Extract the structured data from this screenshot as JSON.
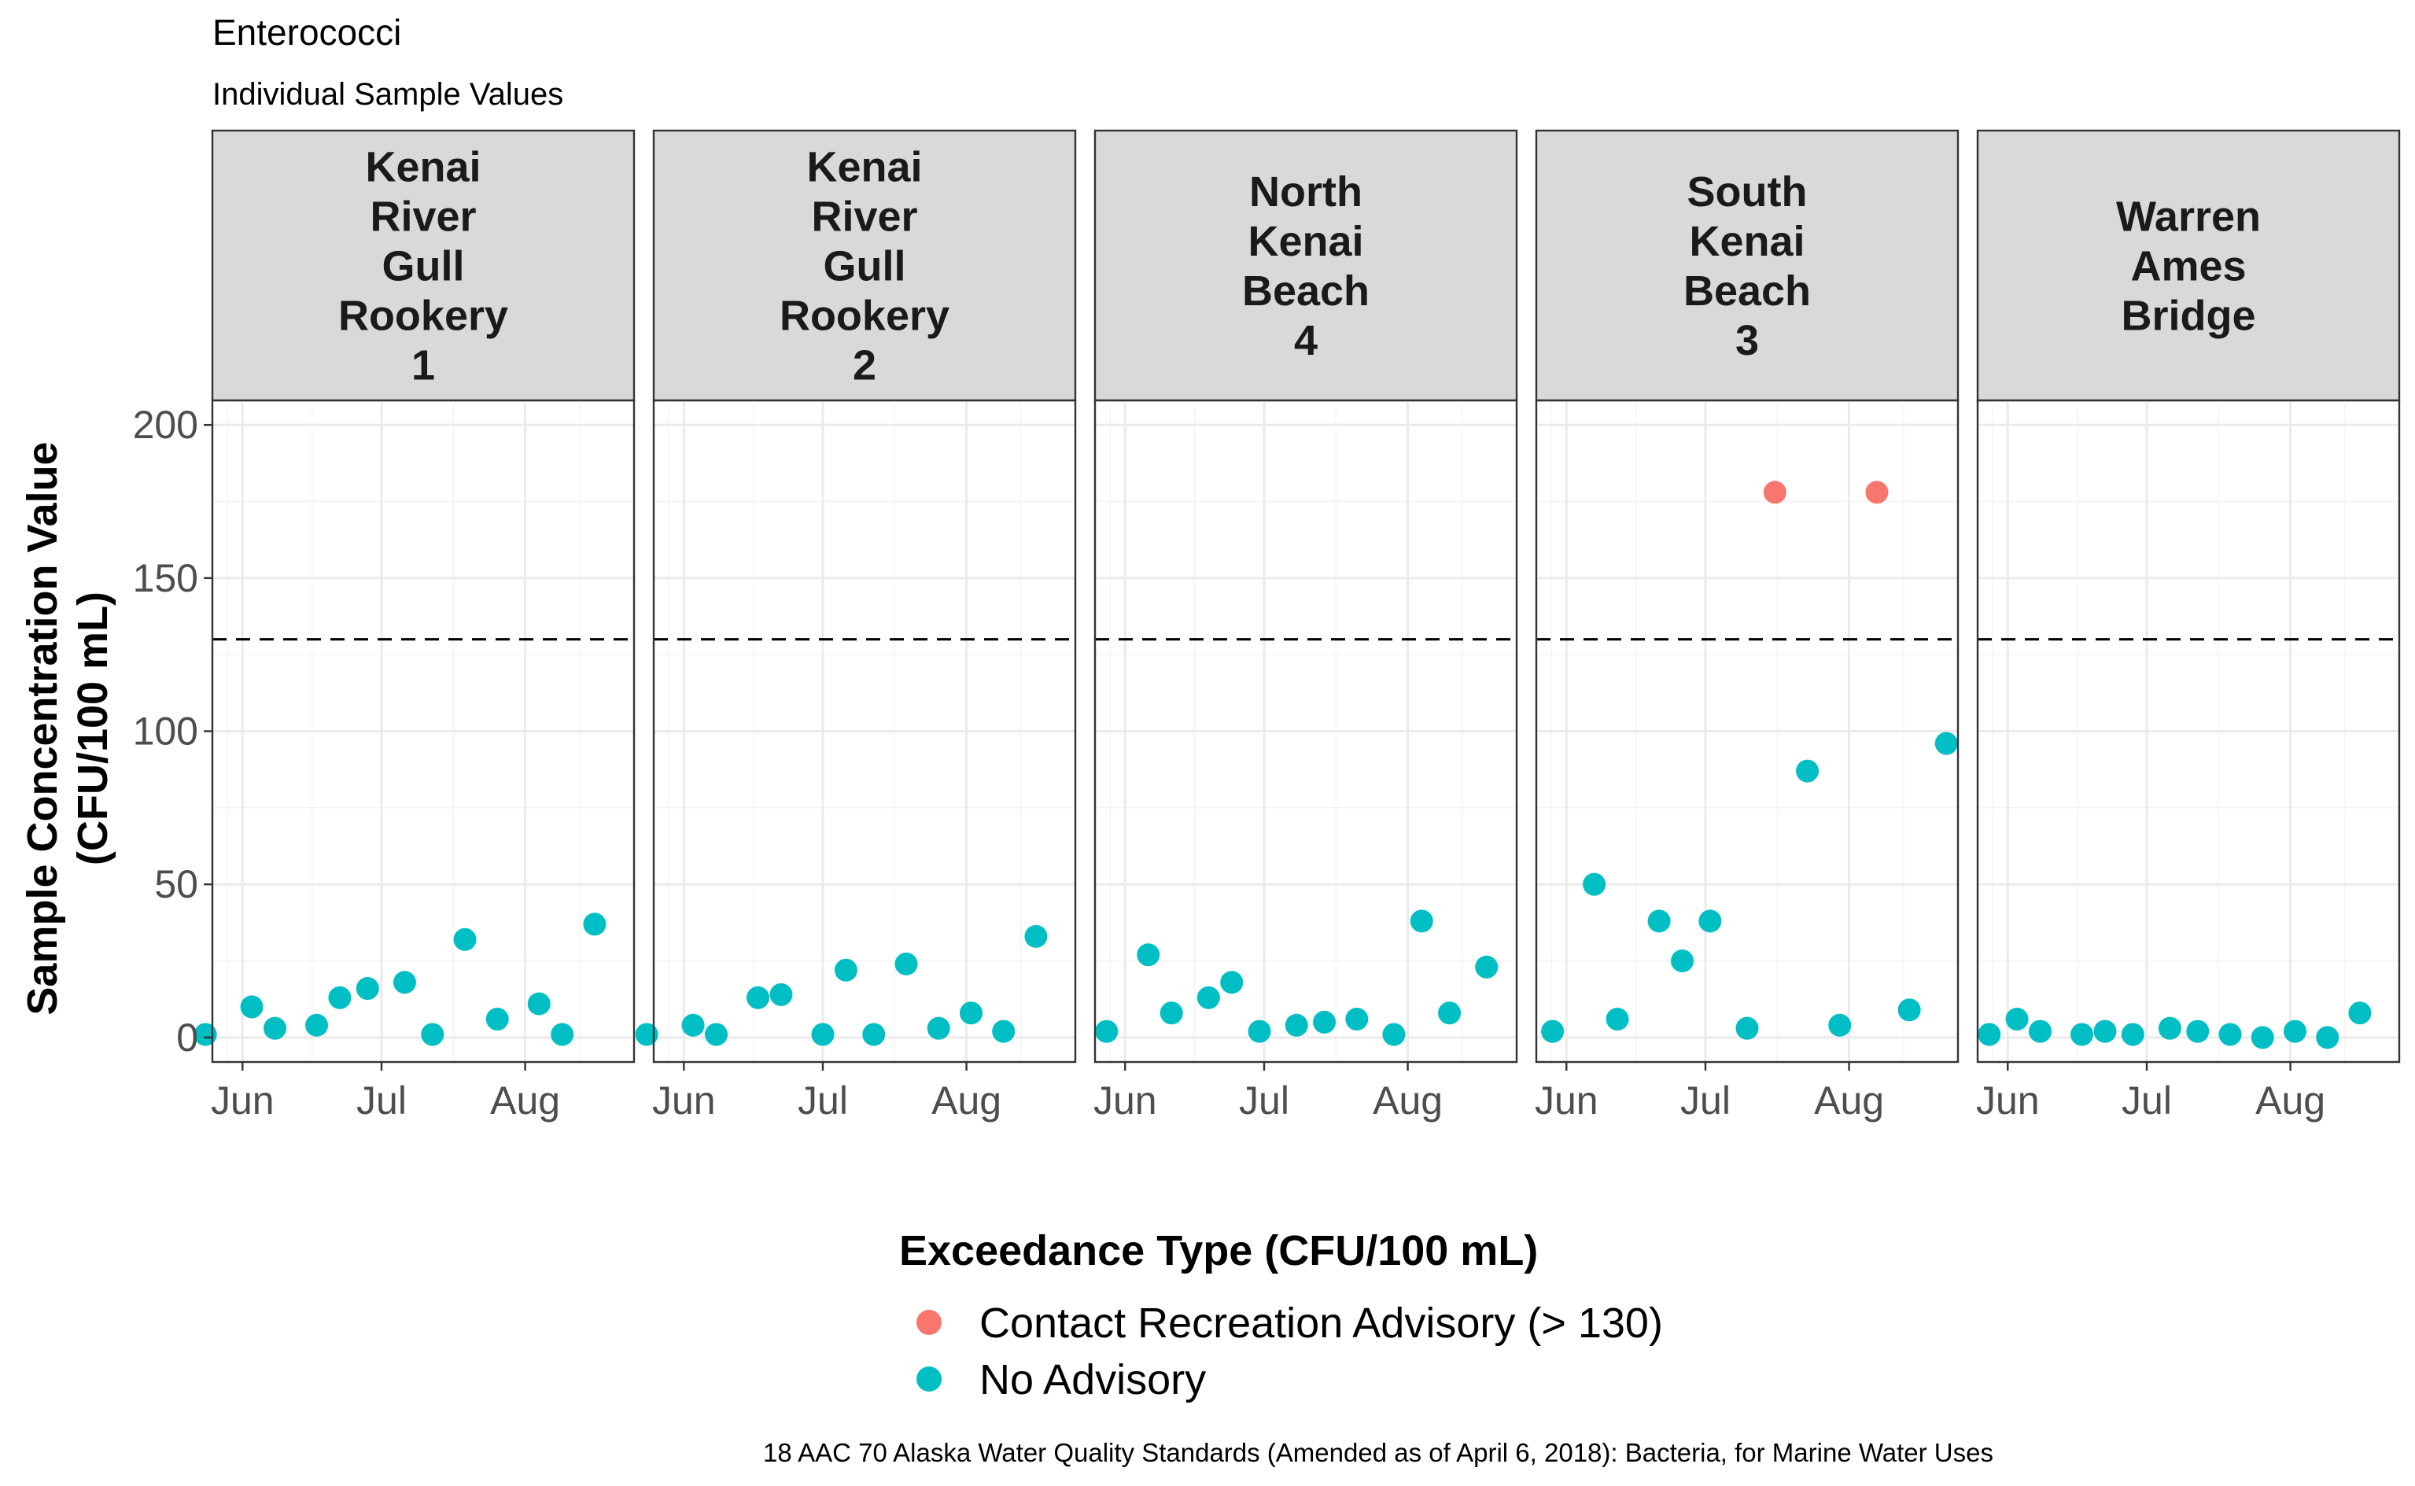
{
  "chart_data": {
    "type": "scatter",
    "title": "Enterococci",
    "subtitle": "Individual Sample Values",
    "ylabel_lines": [
      "Sample Concentration Value",
      "(CFU/100 mL)"
    ],
    "ylim": [
      -8,
      208
    ],
    "yticks": [
      0,
      50,
      100,
      150,
      200
    ],
    "xlim_day_of_year": [
      145.5,
      236.5
    ],
    "xticks": [
      {
        "label": "Jun",
        "day": 152
      },
      {
        "label": "Jul",
        "day": 182
      },
      {
        "label": "Aug",
        "day": 213
      }
    ],
    "threshold": 130,
    "legend": {
      "title": "Exceedance Type (CFU/100 mL)",
      "entries": [
        {
          "key": "advisory",
          "label": "Contact Recreation Advisory (> 130)",
          "color": "#F8766D"
        },
        {
          "key": "none",
          "label": "No Advisory",
          "color": "#00BFC4"
        }
      ]
    },
    "caption": "18 AAC 70 Alaska Water Quality Standards (Amended as of April 6, 2018): Bacteria, for Marine Water Uses",
    "panels": [
      {
        "name": "Kenai River Gull Rookery 1",
        "strip_lines": [
          "Kenai",
          "River",
          "Gull",
          "Rookery",
          "1"
        ],
        "points": [
          {
            "day": 144,
            "value": 1,
            "type": "none"
          },
          {
            "day": 154,
            "value": 10,
            "type": "none"
          },
          {
            "day": 159,
            "value": 3,
            "type": "none"
          },
          {
            "day": 168,
            "value": 4,
            "type": "none"
          },
          {
            "day": 173,
            "value": 13,
            "type": "none"
          },
          {
            "day": 179,
            "value": 16,
            "type": "none"
          },
          {
            "day": 187,
            "value": 18,
            "type": "none"
          },
          {
            "day": 193,
            "value": 1,
            "type": "none"
          },
          {
            "day": 200,
            "value": 32,
            "type": "none"
          },
          {
            "day": 207,
            "value": 6,
            "type": "none"
          },
          {
            "day": 216,
            "value": 11,
            "type": "none"
          },
          {
            "day": 221,
            "value": 1,
            "type": "none"
          },
          {
            "day": 228,
            "value": 37,
            "type": "none"
          }
        ]
      },
      {
        "name": "Kenai River Gull Rookery 2",
        "strip_lines": [
          "Kenai",
          "River",
          "Gull",
          "Rookery",
          "2"
        ],
        "points": [
          {
            "day": 144,
            "value": 1,
            "type": "none"
          },
          {
            "day": 154,
            "value": 4,
            "type": "none"
          },
          {
            "day": 159,
            "value": 1,
            "type": "none"
          },
          {
            "day": 168,
            "value": 13,
            "type": "none"
          },
          {
            "day": 173,
            "value": 14,
            "type": "none"
          },
          {
            "day": 182,
            "value": 1,
            "type": "none"
          },
          {
            "day": 187,
            "value": 22,
            "type": "none"
          },
          {
            "day": 193,
            "value": 1,
            "type": "none"
          },
          {
            "day": 200,
            "value": 24,
            "type": "none"
          },
          {
            "day": 207,
            "value": 3,
            "type": "none"
          },
          {
            "day": 214,
            "value": 8,
            "type": "none"
          },
          {
            "day": 221,
            "value": 2,
            "type": "none"
          },
          {
            "day": 228,
            "value": 33,
            "type": "none"
          }
        ]
      },
      {
        "name": "North Kenai Beach 4",
        "strip_lines": [
          "North",
          "Kenai",
          "Beach",
          "4"
        ],
        "points": [
          {
            "day": 148,
            "value": 2,
            "type": "none"
          },
          {
            "day": 157,
            "value": 27,
            "type": "none"
          },
          {
            "day": 162,
            "value": 8,
            "type": "none"
          },
          {
            "day": 170,
            "value": 13,
            "type": "none"
          },
          {
            "day": 175,
            "value": 18,
            "type": "none"
          },
          {
            "day": 181,
            "value": 2,
            "type": "none"
          },
          {
            "day": 189,
            "value": 4,
            "type": "none"
          },
          {
            "day": 195,
            "value": 5,
            "type": "none"
          },
          {
            "day": 202,
            "value": 6,
            "type": "none"
          },
          {
            "day": 210,
            "value": 1,
            "type": "none"
          },
          {
            "day": 216,
            "value": 38,
            "type": "none"
          },
          {
            "day": 222,
            "value": 8,
            "type": "none"
          },
          {
            "day": 230,
            "value": 23,
            "type": "none"
          }
        ]
      },
      {
        "name": "South Kenai Beach 3",
        "strip_lines": [
          "South",
          "Kenai",
          "Beach",
          "3"
        ],
        "points": [
          {
            "day": 149,
            "value": 2,
            "type": "none"
          },
          {
            "day": 158,
            "value": 50,
            "type": "none"
          },
          {
            "day": 163,
            "value": 6,
            "type": "none"
          },
          {
            "day": 172,
            "value": 38,
            "type": "none"
          },
          {
            "day": 177,
            "value": 25,
            "type": "none"
          },
          {
            "day": 183,
            "value": 38,
            "type": "none"
          },
          {
            "day": 191,
            "value": 3,
            "type": "none"
          },
          {
            "day": 197,
            "value": 178,
            "type": "advisory"
          },
          {
            "day": 204,
            "value": 87,
            "type": "none"
          },
          {
            "day": 211,
            "value": 4,
            "type": "none"
          },
          {
            "day": 219,
            "value": 178,
            "type": "advisory"
          },
          {
            "day": 226,
            "value": 9,
            "type": "none"
          },
          {
            "day": 234,
            "value": 96,
            "type": "none"
          }
        ]
      },
      {
        "name": "Warren Ames Bridge",
        "strip_lines": [
          "Warren",
          "Ames",
          "Bridge"
        ],
        "points": [
          {
            "day": 148,
            "value": 1,
            "type": "none"
          },
          {
            "day": 154,
            "value": 6,
            "type": "none"
          },
          {
            "day": 159,
            "value": 2,
            "type": "none"
          },
          {
            "day": 168,
            "value": 1,
            "type": "none"
          },
          {
            "day": 173,
            "value": 2,
            "type": "none"
          },
          {
            "day": 179,
            "value": 1,
            "type": "none"
          },
          {
            "day": 187,
            "value": 3,
            "type": "none"
          },
          {
            "day": 193,
            "value": 2,
            "type": "none"
          },
          {
            "day": 200,
            "value": 1,
            "type": "none"
          },
          {
            "day": 207,
            "value": 0,
            "type": "none"
          },
          {
            "day": 214,
            "value": 2,
            "type": "none"
          },
          {
            "day": 221,
            "value": 0,
            "type": "none"
          },
          {
            "day": 228,
            "value": 8,
            "type": "none"
          }
        ]
      }
    ]
  }
}
